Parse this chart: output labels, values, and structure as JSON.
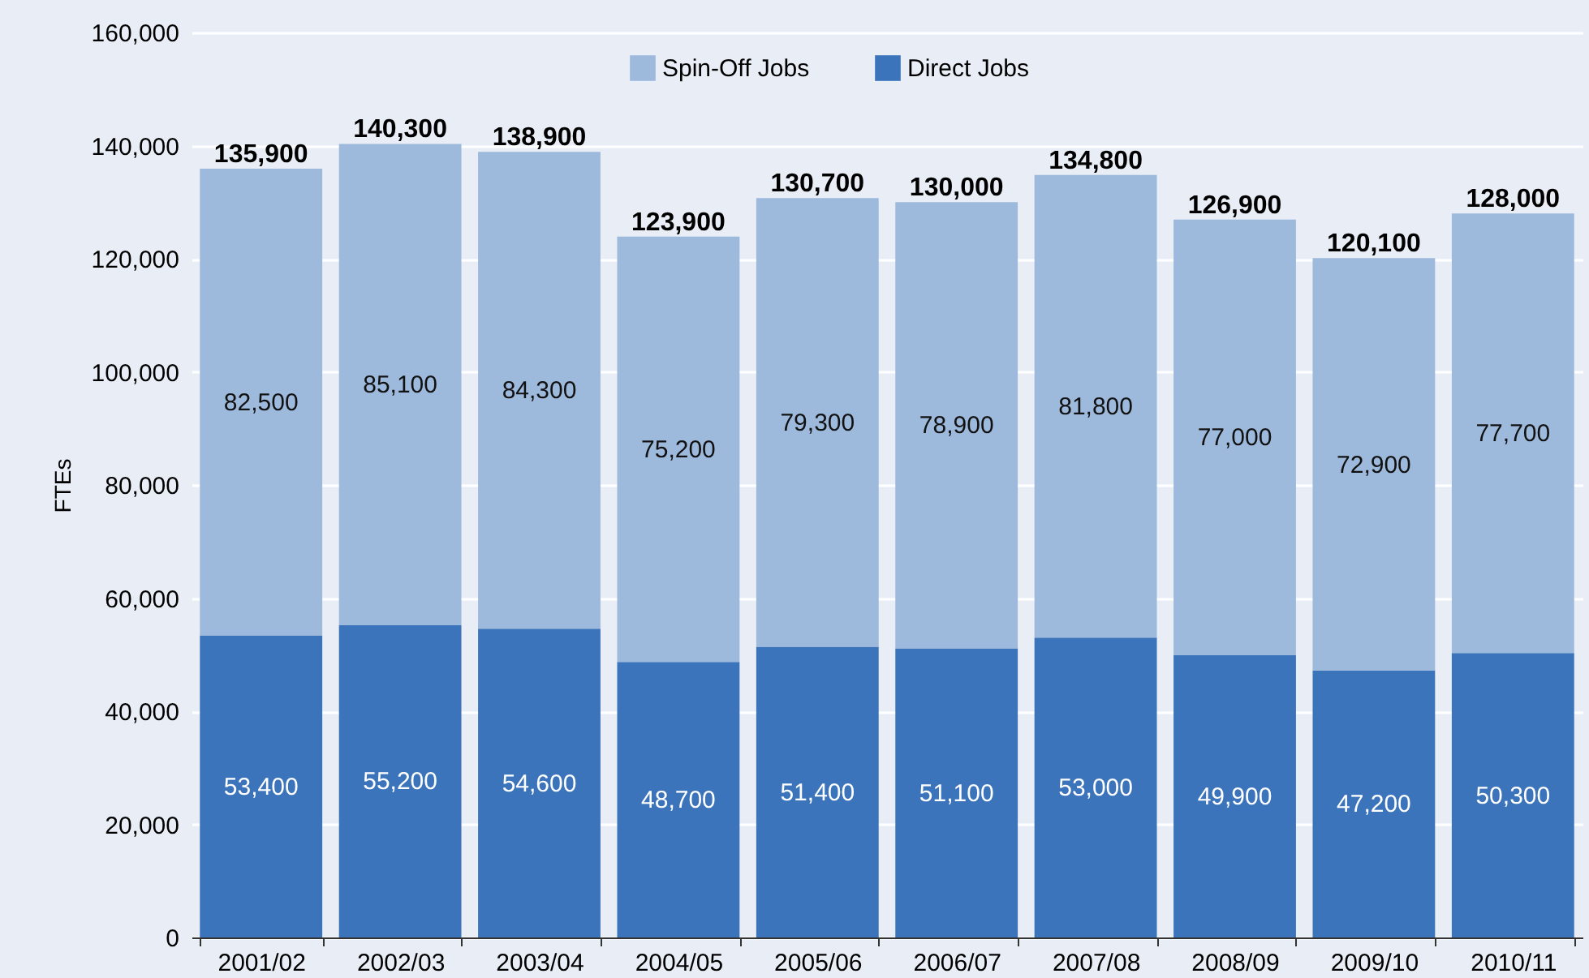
{
  "chart_data": {
    "type": "bar",
    "stacked": true,
    "ylabel": "FTEs",
    "categories": [
      "2001/02",
      "2002/03",
      "2003/04",
      "2004/05",
      "2005/06",
      "2006/07",
      "2007/08",
      "2008/09",
      "2009/10",
      "2010/11"
    ],
    "series": [
      {
        "name": "Direct Jobs",
        "color": "#3b74ba",
        "values": [
          53400,
          55200,
          54600,
          48700,
          51400,
          51100,
          53000,
          49900,
          47200,
          50300
        ],
        "value_labels": [
          "53,400",
          "55,200",
          "54,600",
          "48,700",
          "51,400",
          "51,100",
          "53,000",
          "49,900",
          "47,200",
          "50,300"
        ]
      },
      {
        "name": "Spin-Off Jobs",
        "color": "#9db9dc",
        "values": [
          82500,
          85100,
          84300,
          75200,
          79300,
          78900,
          81800,
          77000,
          72900,
          77700
        ],
        "value_labels": [
          "82,500",
          "85,100",
          "84,300",
          "75,200",
          "79,300",
          "78,900",
          "81,800",
          "77,000",
          "72,900",
          "77,700"
        ]
      }
    ],
    "totals": [
      "135,900",
      "140,300",
      "138,900",
      "123,900",
      "130,700",
      "130,000",
      "134,800",
      "126,900",
      "120,100",
      "128,000"
    ],
    "ylim": [
      0,
      160000
    ],
    "yticks": [
      0,
      {
        "value": 20000,
        "label": "20,000"
      },
      {
        "value": 40000,
        "label": "40,000"
      },
      {
        "value": 60000,
        "label": "60,000"
      },
      {
        "value": 80000,
        "label": "80,000"
      },
      {
        "value": 100000,
        "label": "100,000"
      },
      {
        "value": 120000,
        "label": "120,000"
      },
      {
        "value": 140000,
        "label": "140,000"
      },
      {
        "value": 160000,
        "label": "160,000"
      }
    ],
    "grid": "y",
    "legend": "top"
  }
}
